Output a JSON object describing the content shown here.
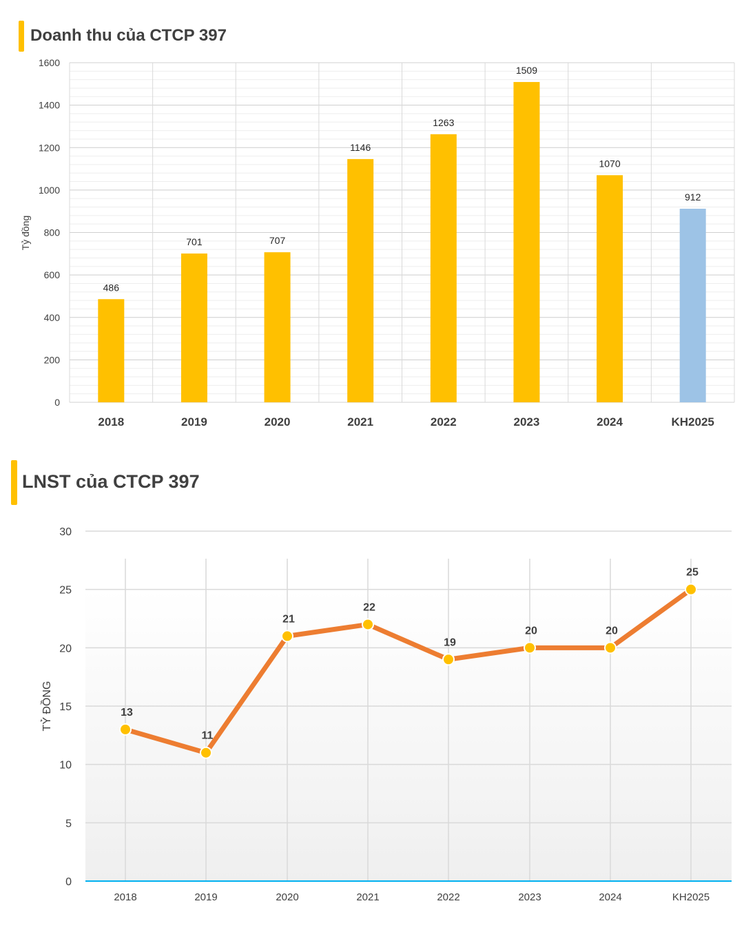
{
  "charts": {
    "revenue": {
      "title": "Doanh thu của CTCP 397"
    },
    "profit": {
      "title": "LNST của CTCP 397"
    }
  },
  "chart_data": [
    {
      "type": "bar",
      "title": "Doanh thu của CTCP 397",
      "ylabel": "Tỷ đồng",
      "xlabel": "",
      "categories": [
        "2018",
        "2019",
        "2020",
        "2021",
        "2022",
        "2023",
        "2024",
        "KH2025"
      ],
      "values": [
        486,
        701,
        707,
        1146,
        1263,
        1509,
        1070,
        912
      ],
      "data_labels": [
        "486",
        "701",
        "707",
        "1146",
        "1263",
        "1509",
        "1070",
        "912"
      ],
      "yticks": [
        "0",
        "200",
        "400",
        "600",
        "800",
        "1000",
        "1200",
        "1400",
        "1600"
      ],
      "ylim": [
        0,
        1600
      ],
      "grid": true,
      "colors": {
        "actual": "#FFC000",
        "plan": "#9DC3E6"
      }
    },
    {
      "type": "line",
      "title": "LNST của CTCP 397",
      "ylabel": "TỶ ĐỒNG",
      "xlabel": "",
      "categories": [
        "2018",
        "2019",
        "2020",
        "2021",
        "2022",
        "2023",
        "2024",
        "KH2025"
      ],
      "values": [
        13,
        11,
        21,
        22,
        19,
        20,
        20,
        25
      ],
      "data_labels": [
        "13",
        "11",
        "21",
        "22",
        "19",
        "20",
        "20",
        "25"
      ],
      "yticks": [
        "0",
        "5",
        "10",
        "15",
        "20",
        "25",
        "30"
      ],
      "ylim": [
        0,
        30
      ],
      "grid": true,
      "colors": {
        "line": "#ED7D31",
        "marker": "#FFC000",
        "baseline": "#00B0F0"
      }
    }
  ]
}
